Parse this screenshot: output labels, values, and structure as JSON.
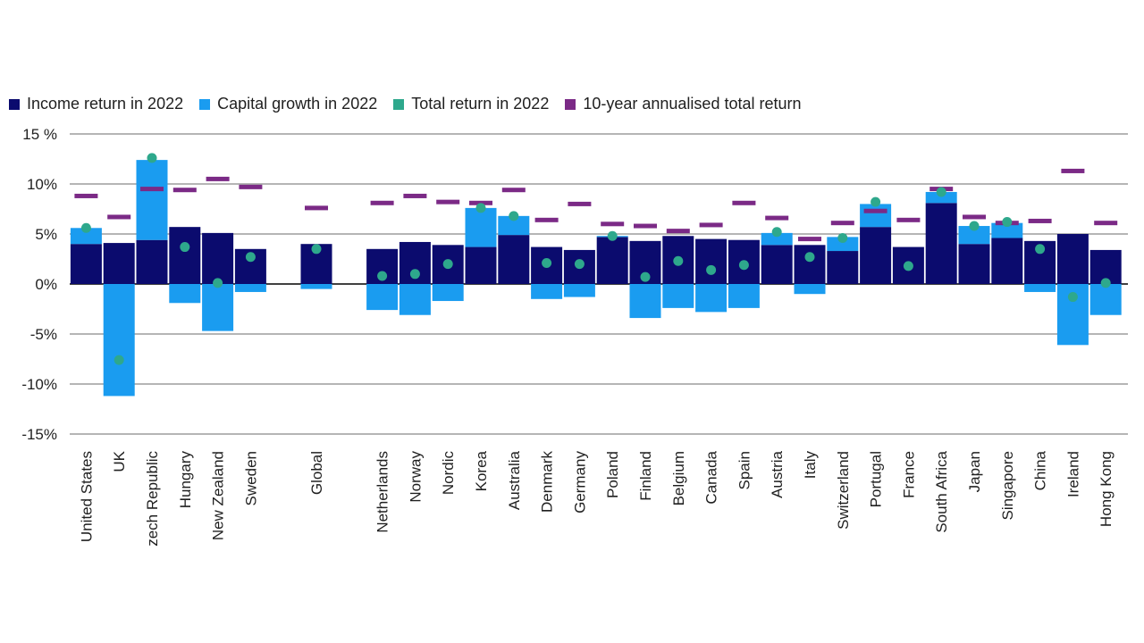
{
  "colors": {
    "income": "#0b0b6e",
    "capital": "#1a9cf0",
    "total": "#2ea88c",
    "ten_year": "#7b2a86",
    "grid": "#3a3a3a",
    "text": "#1f1f1f"
  },
  "legend": {
    "income": "Income return in 2022",
    "capital": "Capital growth in 2022",
    "total": "Total return in 2022",
    "ten_year": "10-year annualised total return"
  },
  "chart_data": {
    "type": "bar",
    "title": "",
    "xlabel": "",
    "ylabel": "",
    "ylim": [
      -15,
      15
    ],
    "ytick_labels": [
      "15 %",
      "10%",
      "5%",
      "0%",
      "-5%",
      "-10%",
      "-15%"
    ],
    "ytick_values": [
      15,
      10,
      5,
      0,
      -5,
      -10,
      -15
    ],
    "categories": [
      "United States",
      "UK",
      "zech Republic",
      "Hungary",
      "New Zealand",
      "Sweden",
      "",
      "Global",
      "",
      "Netherlands",
      "Norway",
      "Nordic",
      "Korea",
      "Australia",
      "Denmark",
      "Germany",
      "Poland",
      "Finland",
      "Belgium",
      "Canada",
      "Spain",
      "Austria",
      "Italy",
      "Switzerland",
      "Portugal",
      "France",
      "South Africa",
      "Japan",
      "Singapore",
      "China",
      "Ireland",
      "Hong Kong"
    ],
    "series": [
      {
        "name": "Income return in 2022",
        "kind": "bar",
        "values": [
          4.0,
          4.1,
          4.4,
          5.7,
          5.1,
          3.5,
          null,
          4.0,
          null,
          3.5,
          4.2,
          3.9,
          3.7,
          4.9,
          3.7,
          3.4,
          4.7,
          4.3,
          4.8,
          4.5,
          4.4,
          3.9,
          3.9,
          3.3,
          5.7,
          3.7,
          8.1,
          4.0,
          4.6,
          4.3,
          5.0,
          3.4
        ]
      },
      {
        "name": "Capital growth in 2022",
        "kind": "bar",
        "values": [
          1.6,
          -11.2,
          8.0,
          -1.9,
          -4.7,
          -0.8,
          null,
          -0.5,
          null,
          -2.6,
          -3.1,
          -1.7,
          3.9,
          1.9,
          -1.5,
          -1.3,
          0.1,
          -3.4,
          -2.4,
          -2.8,
          -2.4,
          1.2,
          -1.0,
          1.4,
          2.3,
          0.0,
          1.1,
          1.8,
          1.5,
          -0.8,
          -6.1,
          -3.1
        ]
      },
      {
        "name": "Total return in 2022",
        "kind": "point",
        "values": [
          5.6,
          -7.6,
          12.6,
          3.7,
          0.1,
          2.7,
          null,
          3.5,
          null,
          0.8,
          1.0,
          2.0,
          7.6,
          6.8,
          2.1,
          2.0,
          4.8,
          0.7,
          2.3,
          1.4,
          1.9,
          5.2,
          2.7,
          4.6,
          8.2,
          1.8,
          9.2,
          5.8,
          6.2,
          3.5,
          -1.3,
          0.1
        ]
      },
      {
        "name": "10-year annualised total return",
        "kind": "marker",
        "values": [
          8.8,
          6.7,
          9.5,
          9.4,
          10.5,
          9.7,
          null,
          7.6,
          null,
          8.1,
          8.8,
          8.2,
          8.1,
          9.4,
          6.4,
          8.0,
          6.0,
          5.8,
          5.3,
          5.9,
          8.1,
          6.6,
          4.5,
          6.1,
          7.3,
          6.4,
          9.5,
          6.7,
          6.1,
          6.3,
          11.3,
          6.1
        ]
      }
    ]
  }
}
